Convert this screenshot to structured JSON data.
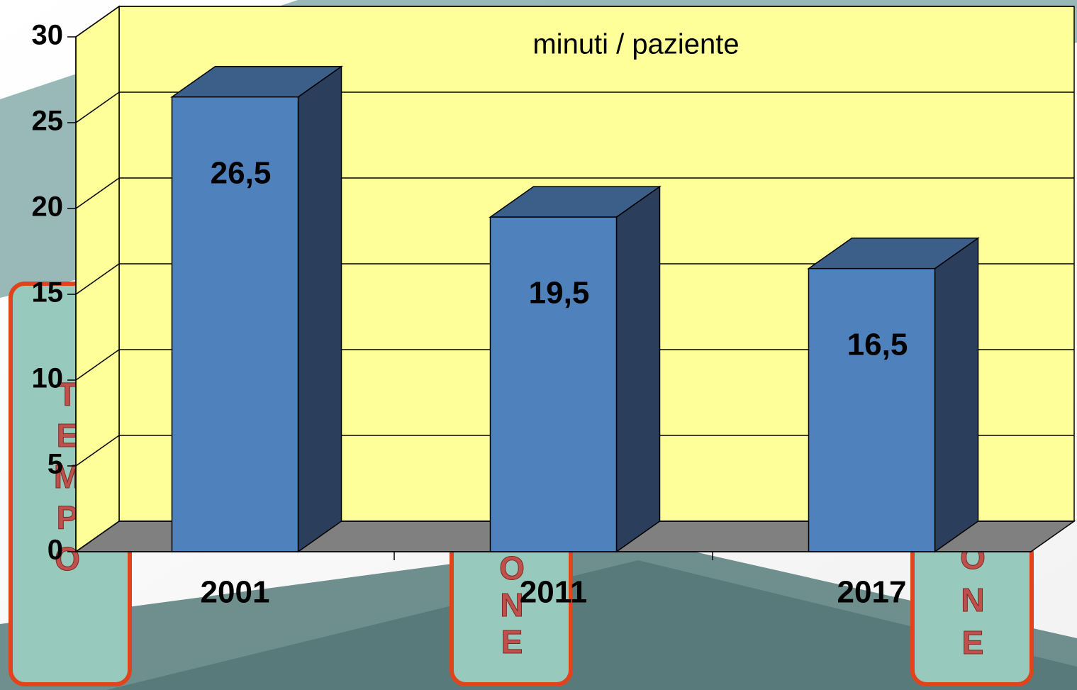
{
  "chart_data": {
    "type": "bar",
    "annotation": "minuti / paziente",
    "categories": [
      "2001",
      "2011",
      "2017"
    ],
    "values": [
      26.5,
      19.5,
      16.5
    ],
    "value_labels": [
      "26,5",
      "19,5",
      "16,5"
    ],
    "color": "#4f81bd",
    "ylim": [
      0,
      30
    ],
    "yticks": [
      0,
      5,
      10,
      15,
      20,
      25,
      30
    ],
    "grid": true
  },
  "background": {
    "columns": [
      [
        "T",
        "E",
        "M",
        "P",
        "O"
      ],
      [
        "O",
        "N",
        "E"
      ],
      [
        "O",
        "N",
        "E"
      ]
    ]
  }
}
